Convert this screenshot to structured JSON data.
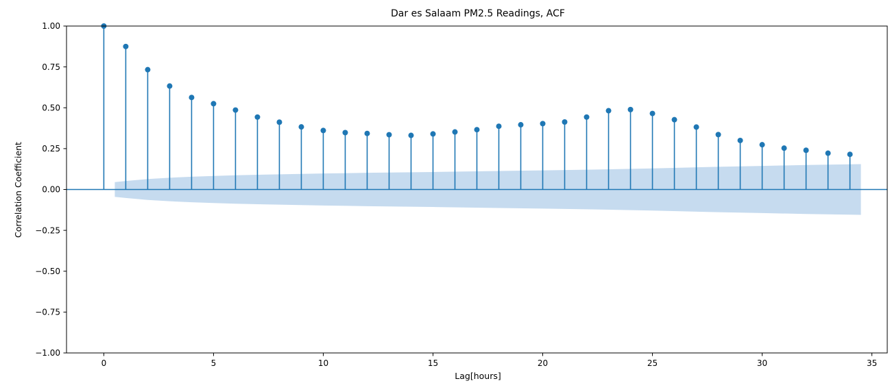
{
  "chart_data": {
    "type": "stem",
    "title": "Dar es Salaam PM2.5 Readings, ACF",
    "xlabel": "Lag[hours]",
    "ylabel": "Correlation Coefficient",
    "xlim": [
      -1.7,
      35.7
    ],
    "ylim": [
      -1.0,
      1.0
    ],
    "xticks": [
      0,
      5,
      10,
      15,
      20,
      25,
      30,
      35
    ],
    "yticks": [
      -1.0,
      -0.75,
      -0.5,
      -0.25,
      0.0,
      0.25,
      0.5,
      0.75,
      1.0
    ],
    "ytick_labels": [
      "−1.00",
      "−0.75",
      "−0.50",
      "−0.25",
      "0.00",
      "0.25",
      "0.50",
      "0.75",
      "1.00"
    ],
    "lags": [
      0,
      1,
      2,
      3,
      4,
      5,
      6,
      7,
      8,
      9,
      10,
      11,
      12,
      13,
      14,
      15,
      16,
      17,
      18,
      19,
      20,
      21,
      22,
      23,
      24,
      25,
      26,
      27,
      28,
      29,
      30,
      31,
      32,
      33,
      34
    ],
    "acf": [
      1.0,
      0.875,
      0.733,
      0.633,
      0.563,
      0.525,
      0.486,
      0.443,
      0.412,
      0.383,
      0.361,
      0.348,
      0.343,
      0.335,
      0.331,
      0.34,
      0.352,
      0.366,
      0.387,
      0.396,
      0.403,
      0.413,
      0.443,
      0.482,
      0.489,
      0.465,
      0.427,
      0.382,
      0.336,
      0.3,
      0.274,
      0.253,
      0.24,
      0.222,
      0.215
    ],
    "confint_x": [
      0.5,
      1,
      2,
      3,
      4,
      5,
      6,
      8,
      10,
      12,
      15,
      18,
      20,
      22,
      25,
      28,
      30,
      32,
      34.5
    ],
    "confint_upper": [
      0.045,
      0.052,
      0.064,
      0.072,
      0.078,
      0.083,
      0.087,
      0.093,
      0.098,
      0.102,
      0.107,
      0.113,
      0.117,
      0.121,
      0.129,
      0.139,
      0.144,
      0.15,
      0.155
    ],
    "colors": {
      "stem": "#1f77b4",
      "band": "#c6dbef",
      "axes": "#000000"
    },
    "grid": false
  }
}
